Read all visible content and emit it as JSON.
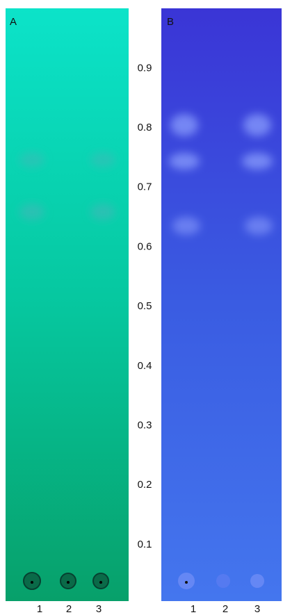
{
  "panels": [
    {
      "label": "A",
      "lanes": [
        "1",
        "2",
        "3"
      ]
    },
    {
      "label": "B",
      "lanes": [
        "1",
        "2",
        "3"
      ]
    }
  ],
  "rf_scale": [
    0.9,
    0.8,
    0.7,
    0.6,
    0.5,
    0.4,
    0.3,
    0.2,
    0.1
  ]
}
